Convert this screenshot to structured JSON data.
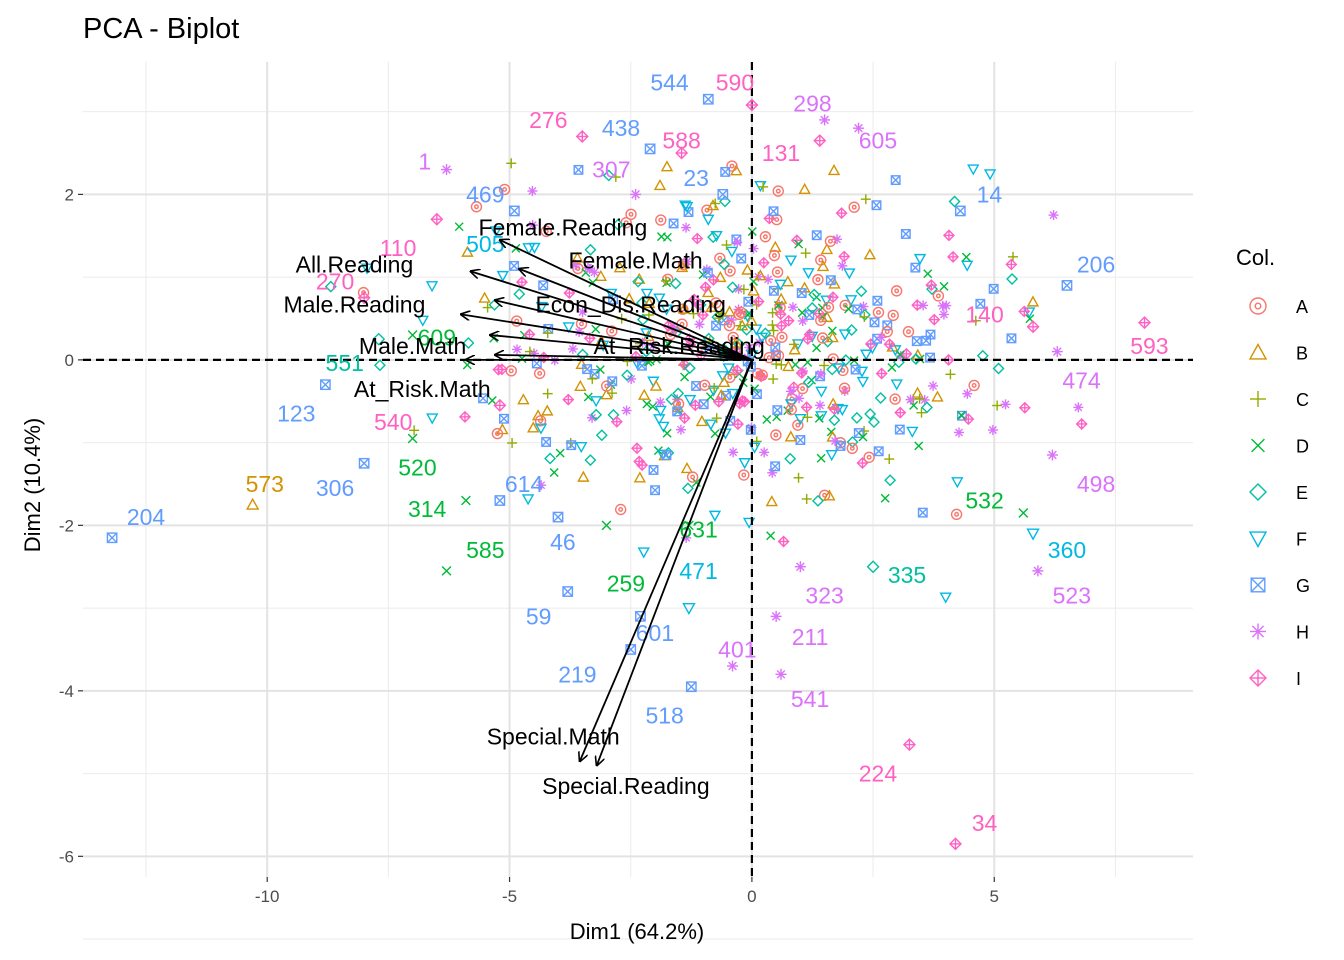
{
  "chart_data": {
    "type": "scatter",
    "title": "PCA - Biplot",
    "xlabel": "Dim1 (64.2%)",
    "ylabel": "Dim2 (10.4%)",
    "xlim": [
      -13.8,
      9.1
    ],
    "ylim": [
      -6.25,
      3.6
    ],
    "x_ticks": [
      -10,
      -5,
      0,
      5
    ],
    "y_ticks": [
      2,
      0,
      -2,
      -4,
      -6
    ],
    "x_tick_labels": [
      "-10",
      "-5",
      "0",
      "5"
    ],
    "y_tick_labels": [
      "2",
      "0",
      "-2",
      "-4",
      "-6"
    ],
    "grid": true,
    "reference_lines": {
      "x": 0,
      "y": 0,
      "style": "dashed"
    },
    "legend": {
      "title": "Col.",
      "placement": "right",
      "groups": [
        {
          "name": "A",
          "color": "#F8766D",
          "shape": "circle"
        },
        {
          "name": "B",
          "color": "#D39200",
          "shape": "triangle"
        },
        {
          "name": "C",
          "color": "#93AA00",
          "shape": "plus"
        },
        {
          "name": "D",
          "color": "#00BA38",
          "shape": "cross"
        },
        {
          "name": "E",
          "color": "#00C19F",
          "shape": "diamond"
        },
        {
          "name": "F",
          "color": "#00B9E3",
          "shape": "triangle-down"
        },
        {
          "name": "G",
          "color": "#619CFF",
          "shape": "square-x"
        },
        {
          "name": "H",
          "color": "#DB72FB",
          "shape": "star"
        },
        {
          "name": "I",
          "color": "#FF61C3",
          "shape": "diamond-plus"
        }
      ]
    },
    "variables": [
      {
        "name": "Female.Reading",
        "x": -5.2,
        "y": 1.45,
        "label_x": -3.9,
        "label_y": 1.6
      },
      {
        "name": "Female.Math",
        "x": -4.8,
        "y": 1.1,
        "label_x": -2.4,
        "label_y": 1.2
      },
      {
        "name": "All.Reading",
        "x": -5.8,
        "y": 1.07,
        "label_x": -8.2,
        "label_y": 1.15
      },
      {
        "name": "Econ_Dis.Reading",
        "x": -5.3,
        "y": 0.72,
        "label_x": -2.5,
        "label_y": 0.67
      },
      {
        "name": "Male.Reading",
        "x": -6.0,
        "y": 0.55,
        "label_x": -8.2,
        "label_y": 0.67
      },
      {
        "name": "At_Risk.Reading",
        "x": -5.4,
        "y": 0.3,
        "label_x": -1.5,
        "label_y": 0.17
      },
      {
        "name": "Male.Math",
        "x": -5.3,
        "y": 0.06,
        "label_x": -7.0,
        "label_y": 0.17
      },
      {
        "name": "At_Risk.Math",
        "x": -5.9,
        "y": 0.0,
        "label_x": -6.8,
        "label_y": -0.35
      },
      {
        "name": "Special.Math",
        "x": -3.55,
        "y": -4.85,
        "label_x": -4.1,
        "label_y": -4.55
      },
      {
        "name": "Special.Reading",
        "x": -3.2,
        "y": -4.9,
        "label_x": -2.6,
        "label_y": -5.15
      }
    ],
    "labeled_points": [
      {
        "label": "544",
        "group": "G",
        "x": -0.9,
        "y": 3.15,
        "label_x": -1.7,
        "label_y": 3.35
      },
      {
        "label": "590",
        "group": "I",
        "x": 0.0,
        "y": 3.08,
        "label_x": -0.35,
        "label_y": 3.35
      },
      {
        "label": "298",
        "group": "H",
        "x": 1.5,
        "y": 2.9,
        "label_x": 1.25,
        "label_y": 3.1
      },
      {
        "label": "276",
        "group": "I",
        "x": -3.5,
        "y": 2.7,
        "label_x": -4.2,
        "label_y": 2.9
      },
      {
        "label": "438",
        "group": "G",
        "x": -2.1,
        "y": 2.55,
        "label_x": -2.7,
        "label_y": 2.8
      },
      {
        "label": "588",
        "group": "I",
        "x": -1.45,
        "y": 2.5,
        "label_x": -1.45,
        "label_y": 2.65
      },
      {
        "label": "605",
        "group": "H",
        "x": 2.2,
        "y": 2.8,
        "label_x": 2.6,
        "label_y": 2.65
      },
      {
        "label": "131",
        "group": "I",
        "x": 1.4,
        "y": 2.65,
        "label_x": 0.6,
        "label_y": 2.5
      },
      {
        "label": "1",
        "group": "H",
        "x": -6.3,
        "y": 2.3,
        "label_x": -6.75,
        "label_y": 2.4
      },
      {
        "label": "307",
        "group": "H",
        "x": -2.4,
        "y": 2.0,
        "label_x": -2.9,
        "label_y": 2.3
      },
      {
        "label": "23",
        "group": "G",
        "x": -0.6,
        "y": 2.0,
        "label_x": -1.15,
        "label_y": 2.2
      },
      {
        "label": "14",
        "group": "G",
        "x": 4.3,
        "y": 1.8,
        "label_x": 4.9,
        "label_y": 2.0
      },
      {
        "label": "469",
        "group": "G",
        "x": -4.9,
        "y": 1.8,
        "label_x": -5.5,
        "label_y": 2.0
      },
      {
        "label": "110",
        "group": "I",
        "x": -6.5,
        "y": 1.7,
        "label_x": -7.3,
        "label_y": 1.35
      },
      {
        "label": "505",
        "group": "F",
        "x": -4.6,
        "y": 1.35,
        "label_x": -5.5,
        "label_y": 1.4
      },
      {
        "label": "206",
        "group": "G",
        "x": 6.5,
        "y": 0.9,
        "label_x": 7.1,
        "label_y": 1.15
      },
      {
        "label": "270",
        "group": "I",
        "x": -8.0,
        "y": 0.75,
        "label_x": -8.6,
        "label_y": 0.95
      },
      {
        "label": "140",
        "group": "I",
        "x": 5.8,
        "y": 0.4,
        "label_x": 4.8,
        "label_y": 0.55
      },
      {
        "label": "593",
        "group": "I",
        "x": 8.1,
        "y": 0.45,
        "label_x": 8.2,
        "label_y": 0.17
      },
      {
        "label": "609",
        "group": "D",
        "x": -7.0,
        "y": 0.3,
        "label_x": -6.5,
        "label_y": 0.27
      },
      {
        "label": "551",
        "group": "E",
        "x": -7.7,
        "y": 0.25,
        "label_x": -8.4,
        "label_y": -0.04
      },
      {
        "label": "474",
        "group": "H",
        "x": 6.3,
        "y": 0.1,
        "label_x": 6.8,
        "label_y": -0.25
      },
      {
        "label": "123",
        "group": "G",
        "x": -8.8,
        "y": -0.3,
        "label_x": -9.4,
        "label_y": -0.65
      },
      {
        "label": "540",
        "group": "I",
        "x": -5.2,
        "y": -0.55,
        "label_x": -7.4,
        "label_y": -0.75
      },
      {
        "label": "520",
        "group": "D",
        "x": -7.0,
        "y": -0.95,
        "label_x": -6.9,
        "label_y": -1.3
      },
      {
        "label": "498",
        "group": "H",
        "x": 6.2,
        "y": -1.15,
        "label_x": 7.1,
        "label_y": -1.5
      },
      {
        "label": "573",
        "group": "B",
        "x": -10.3,
        "y": -1.75,
        "label_x": -10.05,
        "label_y": -1.5
      },
      {
        "label": "306",
        "group": "G",
        "x": -8.0,
        "y": -1.25,
        "label_x": -8.6,
        "label_y": -1.55
      },
      {
        "label": "614",
        "group": "G",
        "x": -5.2,
        "y": -1.7,
        "label_x": -4.7,
        "label_y": -1.5
      },
      {
        "label": "532",
        "group": "D",
        "x": 5.6,
        "y": -1.85,
        "label_x": 4.8,
        "label_y": -1.7
      },
      {
        "label": "314",
        "group": "D",
        "x": -5.9,
        "y": -1.7,
        "label_x": -6.7,
        "label_y": -1.8
      },
      {
        "label": "204",
        "group": "G",
        "x": -13.2,
        "y": -2.15,
        "label_x": -12.5,
        "label_y": -1.9
      },
      {
        "label": "631",
        "group": "D",
        "x": -1.3,
        "y": -2.0,
        "label_x": -1.1,
        "label_y": -2.05
      },
      {
        "label": "360",
        "group": "F",
        "x": 5.8,
        "y": -2.1,
        "label_x": 6.5,
        "label_y": -2.3
      },
      {
        "label": "46",
        "group": "G",
        "x": -4.0,
        "y": -1.9,
        "label_x": -3.9,
        "label_y": -2.2
      },
      {
        "label": "585",
        "group": "D",
        "x": -6.3,
        "y": -2.55,
        "label_x": -5.5,
        "label_y": -2.3
      },
      {
        "label": "259",
        "group": "D",
        "x": -3.0,
        "y": -2.0,
        "label_x": -2.6,
        "label_y": -2.7
      },
      {
        "label": "471",
        "group": "F",
        "x": -1.3,
        "y": -3.0,
        "label_x": -1.1,
        "label_y": -2.55
      },
      {
        "label": "335",
        "group": "E",
        "x": 2.5,
        "y": -2.5,
        "label_x": 3.2,
        "label_y": -2.6
      },
      {
        "label": "523",
        "group": "H",
        "x": 5.9,
        "y": -2.55,
        "label_x": 6.6,
        "label_y": -2.85
      },
      {
        "label": "323",
        "group": "H",
        "x": 1.0,
        "y": -2.5,
        "label_x": 1.5,
        "label_y": -2.85
      },
      {
        "label": "59",
        "group": "G",
        "x": -3.8,
        "y": -2.8,
        "label_x": -4.4,
        "label_y": -3.1
      },
      {
        "label": "601",
        "group": "G",
        "x": -2.3,
        "y": -3.1,
        "label_x": -2.0,
        "label_y": -3.3
      },
      {
        "label": "211",
        "group": "H",
        "x": 0.5,
        "y": -3.1,
        "label_x": 1.2,
        "label_y": -3.35
      },
      {
        "label": "401",
        "group": "H",
        "x": -0.4,
        "y": -3.7,
        "label_x": -0.3,
        "label_y": -3.5
      },
      {
        "label": "219",
        "group": "G",
        "x": -2.5,
        "y": -3.5,
        "label_x": -3.6,
        "label_y": -3.8
      },
      {
        "label": "541",
        "group": "H",
        "x": 0.6,
        "y": -3.8,
        "label_x": 1.2,
        "label_y": -4.1
      },
      {
        "label": "518",
        "group": "G",
        "x": -1.25,
        "y": -3.95,
        "label_x": -1.8,
        "label_y": -4.3
      },
      {
        "label": "224",
        "group": "I",
        "x": 3.25,
        "y": -4.65,
        "label_x": 2.6,
        "label_y": -5.0
      },
      {
        "label": "34",
        "group": "I",
        "x": 4.2,
        "y": -5.85,
        "label_x": 4.8,
        "label_y": -5.6
      }
    ]
  }
}
